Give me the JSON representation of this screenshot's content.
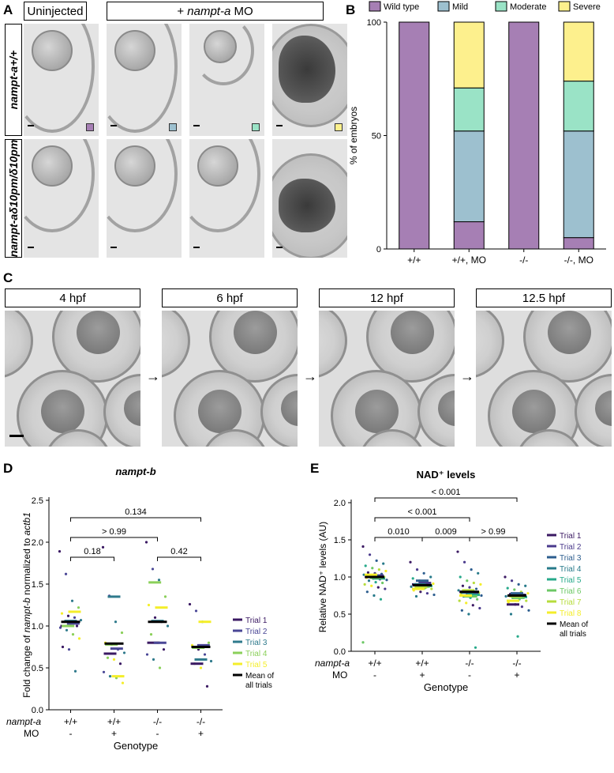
{
  "panel_a": {
    "label": "A",
    "header_uninjected": "Uninjected",
    "header_mo_prefix": "+ ",
    "header_mo_gene": "nampt-a",
    "header_mo_suffix": " MO",
    "row1_label": "nampt-a+/+",
    "row2_label": "nampt-aδ10pm/δ10pm",
    "swatch_colors": [
      "#a67fb4",
      "#9dc0cf",
      "#9ae3c6",
      "#fdf08d"
    ]
  },
  "panel_b": {
    "label": "B",
    "legend": [
      "Wild type",
      "Mild",
      "Moderate",
      "Severe"
    ],
    "colors": [
      "#a67fb4",
      "#9dc0cf",
      "#9ae3c6",
      "#fdf08d"
    ],
    "ylabel": "% of embryos",
    "yticks": [
      "0",
      "50",
      "100"
    ]
  },
  "panel_c": {
    "label": "C",
    "stages": [
      "4 hpf",
      "6 hpf",
      "12 hpf",
      "12.5 hpf"
    ]
  },
  "panel_d": {
    "label": "D",
    "title": "nampt-b",
    "ylabel_pre": "Fold change of ",
    "ylabel_gene": "nampt-b",
    "ylabel_mid": " normalized to ",
    "ylabel_ref": "actb1",
    "xlabel": "Genotype",
    "row_gene": "nampt-a",
    "row_mo": "MO",
    "genotypes": [
      "+/+",
      "+/+",
      "-/-",
      "-/-"
    ],
    "mo": [
      "-",
      "+",
      "-",
      "+"
    ],
    "yticks": [
      "0.0",
      "0.5",
      "1.0",
      "1.5",
      "2.0",
      "2.5"
    ],
    "pvals": [
      "0.134",
      "> 0.99",
      "0.18",
      "0.42"
    ],
    "legend": [
      "Trial 1",
      "Trial 2",
      "Trial 3",
      "Trial 4",
      "Trial 5"
    ],
    "legend_mean": [
      "Mean of",
      "all trials"
    ]
  },
  "panel_e": {
    "label": "E",
    "title": "NAD⁺ levels",
    "ylabel": "Relative NAD⁺ levels (AU)",
    "xlabel": "Genotype",
    "row_gene": "nampt-a",
    "row_mo": "MO",
    "genotypes": [
      "+/+",
      "+/+",
      "-/-",
      "-/-"
    ],
    "mo": [
      "-",
      "+",
      "-",
      "+"
    ],
    "yticks": [
      "0.0",
      "0.5",
      "1.0",
      "1.5",
      "2.0"
    ],
    "pvals": [
      "< 0.001",
      "< 0.001",
      "> 0.99",
      "0.010",
      "0.009"
    ],
    "legend": [
      "Trial 1",
      "Trial 2",
      "Trial 3",
      "Trial 4",
      "Trial 5",
      "Trial 6",
      "Trial 7",
      "Trial 8"
    ],
    "legend_mean": [
      "Mean of",
      "all trials"
    ]
  },
  "chart_data": [
    {
      "type": "bar",
      "panel": "B",
      "stacked": true,
      "categories": [
        "+/+",
        "+/+, MO",
        "-/-",
        "-/-, MO"
      ],
      "series": [
        {
          "name": "Wild type",
          "values": [
            100,
            12,
            100,
            5
          ]
        },
        {
          "name": "Mild",
          "values": [
            0,
            40,
            0,
            47
          ]
        },
        {
          "name": "Moderate",
          "values": [
            0,
            19,
            0,
            22
          ]
        },
        {
          "name": "Severe",
          "values": [
            0,
            29,
            0,
            26
          ]
        }
      ],
      "ylabel": "% of embryos",
      "ylim": [
        0,
        100
      ],
      "legend": "top"
    },
    {
      "type": "scatter",
      "panel": "D",
      "title": "nampt-b",
      "categories": [
        "+/+ -",
        "+/+ +",
        "-/- -",
        "-/- +"
      ],
      "trial_colors": [
        "#3b1a63",
        "#4a4796",
        "#2f7a8c",
        "#8bd05a",
        "#f4ee2a"
      ],
      "trial_means": [
        [
          1.0,
          0.67,
          0.8,
          0.55
        ],
        [
          1.03,
          0.73,
          0.8,
          0.77
        ],
        [
          1.06,
          1.35,
          1.06,
          0.6
        ],
        [
          1.0,
          0.78,
          1.52,
          0.74
        ],
        [
          1.17,
          0.4,
          1.22,
          1.05
        ]
      ],
      "overall_means": [
        1.05,
        0.79,
        1.05,
        0.75
      ],
      "points": [
        [
          1.89,
          1.62,
          1.3,
          1.22,
          1.15,
          1.12,
          1.1,
          1.07,
          1.05,
          1.03,
          1.0,
          0.98,
          0.95,
          0.9,
          0.85,
          0.75,
          0.72,
          0.46
        ],
        [
          1.94,
          1.36,
          1.05,
          0.92,
          0.8,
          0.78,
          0.72,
          0.68,
          0.62,
          0.6,
          0.55,
          0.45,
          0.4,
          0.38,
          0.32
        ],
        [
          2.0,
          1.68,
          1.55,
          1.35,
          1.25,
          1.1,
          1.05,
          1.0,
          0.9,
          0.8,
          0.72,
          0.66,
          0.6,
          0.5
        ],
        [
          1.26,
          1.18,
          1.05,
          0.8,
          0.77,
          0.72,
          0.66,
          0.58,
          0.55,
          0.5,
          0.28
        ]
      ],
      "ylim": [
        0,
        2.5
      ],
      "ylabel": "Fold change of nampt-b normalized to actb1",
      "xlabel": "Genotype"
    },
    {
      "type": "scatter",
      "panel": "E",
      "title": "NAD⁺ levels",
      "categories": [
        "+/+ -",
        "+/+ +",
        "-/- -",
        "-/- +"
      ],
      "trial_colors": [
        "#3b1a63",
        "#4a3a8c",
        "#2c5d8e",
        "#277a8a",
        "#27a98a",
        "#6cc865",
        "#b6dc3c",
        "#f4ee2a"
      ],
      "trial_means": [
        [
          1.0,
          0.9,
          0.8,
          0.63
        ],
        [
          1.02,
          0.92,
          0.78,
          0.76
        ],
        [
          1.0,
          0.95,
          0.8,
          0.78
        ],
        [
          1.01,
          0.9,
          0.79,
          0.75
        ],
        [
          0.98,
          0.88,
          0.76,
          0.73
        ],
        [
          0.99,
          0.87,
          0.74,
          0.72
        ],
        [
          1.0,
          0.86,
          0.82,
          0.74
        ],
        [
          1.03,
          0.84,
          0.75,
          0.68
        ]
      ],
      "overall_means": [
        1.0,
        0.89,
        0.8,
        0.75
      ],
      "points": [
        [
          1.41,
          1.3,
          1.22,
          1.18,
          1.15,
          1.12,
          1.1,
          1.08,
          1.06,
          1.05,
          1.04,
          1.03,
          1.02,
          1.01,
          1.0,
          0.99,
          0.98,
          0.97,
          0.96,
          0.95,
          0.93,
          0.92,
          0.9,
          0.88,
          0.86,
          0.84,
          0.8,
          0.75,
          0.7,
          0.12
        ],
        [
          1.2,
          1.1,
          1.05,
          1.0,
          0.98,
          0.95,
          0.93,
          0.91,
          0.9,
          0.89,
          0.88,
          0.87,
          0.86,
          0.85,
          0.84,
          0.82,
          0.8,
          0.78,
          0.76,
          0.74
        ],
        [
          1.34,
          1.2,
          1.1,
          1.05,
          1.0,
          0.95,
          0.92,
          0.9,
          0.88,
          0.86,
          0.84,
          0.82,
          0.81,
          0.8,
          0.79,
          0.78,
          0.77,
          0.76,
          0.75,
          0.74,
          0.72,
          0.7,
          0.68,
          0.65,
          0.62,
          0.58,
          0.55,
          0.5,
          0.05
        ],
        [
          1.0,
          0.95,
          0.9,
          0.88,
          0.85,
          0.83,
          0.8,
          0.78,
          0.77,
          0.76,
          0.75,
          0.74,
          0.72,
          0.7,
          0.68,
          0.66,
          0.63,
          0.6,
          0.55,
          0.5,
          0.2
        ]
      ],
      "ylim": [
        0,
        2.0
      ],
      "ylabel": "Relative NAD⁺ levels (AU)",
      "xlabel": "Genotype"
    }
  ]
}
